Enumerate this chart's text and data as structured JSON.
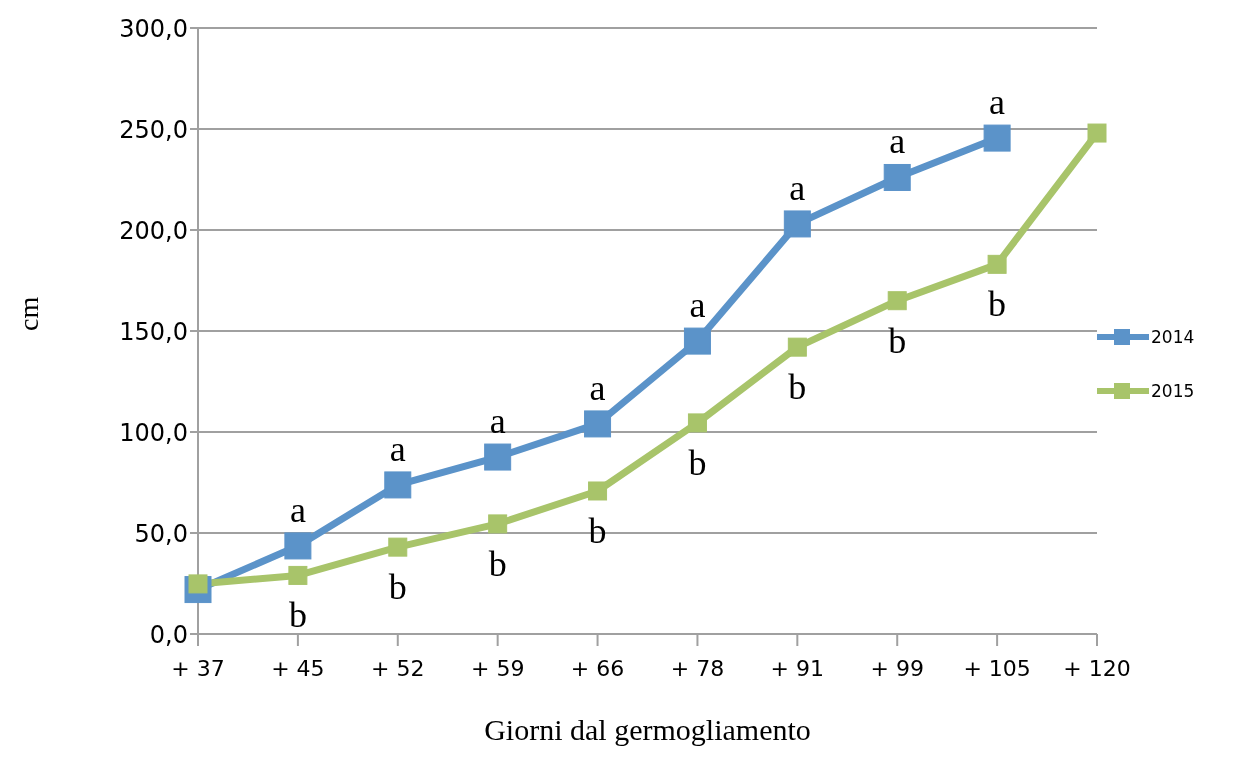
{
  "chart_data": {
    "type": "line",
    "xlabel": "Giorni dal germogliamento",
    "ylabel": "cm",
    "categories": [
      "+ 37",
      "+ 45",
      "+ 52",
      "+ 59",
      "+ 66",
      "+ 78",
      "+ 91",
      "+ 99",
      "+ 105",
      "+ 120"
    ],
    "series": [
      {
        "name": "2014",
        "color": "#5b93c9",
        "values": [
          22,
          43.6,
          73.8,
          87.6,
          104,
          145,
          203,
          226,
          245.5,
          null
        ]
      },
      {
        "name": "2015",
        "color": "#a8c46a",
        "values": [
          24.8,
          29,
          43,
          54.5,
          70.8,
          104.5,
          142,
          165,
          183,
          248
        ]
      }
    ],
    "ylim": [
      0,
      300
    ],
    "yticks": [
      {
        "value": 0,
        "label": "0,0"
      },
      {
        "value": 50,
        "label": "50,0"
      },
      {
        "value": 100,
        "label": "100,0"
      },
      {
        "value": 150,
        "label": "150,0"
      },
      {
        "value": 200,
        "label": "200,0"
      },
      {
        "value": 250,
        "label": "250,0"
      },
      {
        "value": 300,
        "label": "300,0"
      }
    ],
    "grid": "y",
    "legend": "right",
    "marker": "square",
    "line_style": "solid",
    "annotations": [
      {
        "text": "a",
        "x": "+ 45",
        "y": 43.6
      },
      {
        "text": "a",
        "x": "+ 52",
        "y": 73.8
      },
      {
        "text": "a",
        "x": "+ 59",
        "y": 87.6
      },
      {
        "text": "a",
        "x": "+ 66",
        "y": 104
      },
      {
        "text": "a",
        "x": "+ 78",
        "y": 145
      },
      {
        "text": "a",
        "x": "+ 91",
        "y": 203
      },
      {
        "text": "a",
        "x": "+ 99",
        "y": 226
      },
      {
        "text": "a",
        "x": "+ 105",
        "y": 245.5
      },
      {
        "text": "b",
        "x": "+ 45",
        "y": 29
      },
      {
        "text": "b",
        "x": "+ 52",
        "y": 43
      },
      {
        "text": "b",
        "x": "+ 59",
        "y": 54.5
      },
      {
        "text": "b",
        "x": "+ 66",
        "y": 70.8
      },
      {
        "text": "b",
        "x": "+ 78",
        "y": 104.5
      },
      {
        "text": "b",
        "x": "+ 91",
        "y": 142
      },
      {
        "text": "b",
        "x": "+ 99",
        "y": 165
      },
      {
        "text": "b",
        "x": "+ 105",
        "y": 183
      }
    ]
  }
}
